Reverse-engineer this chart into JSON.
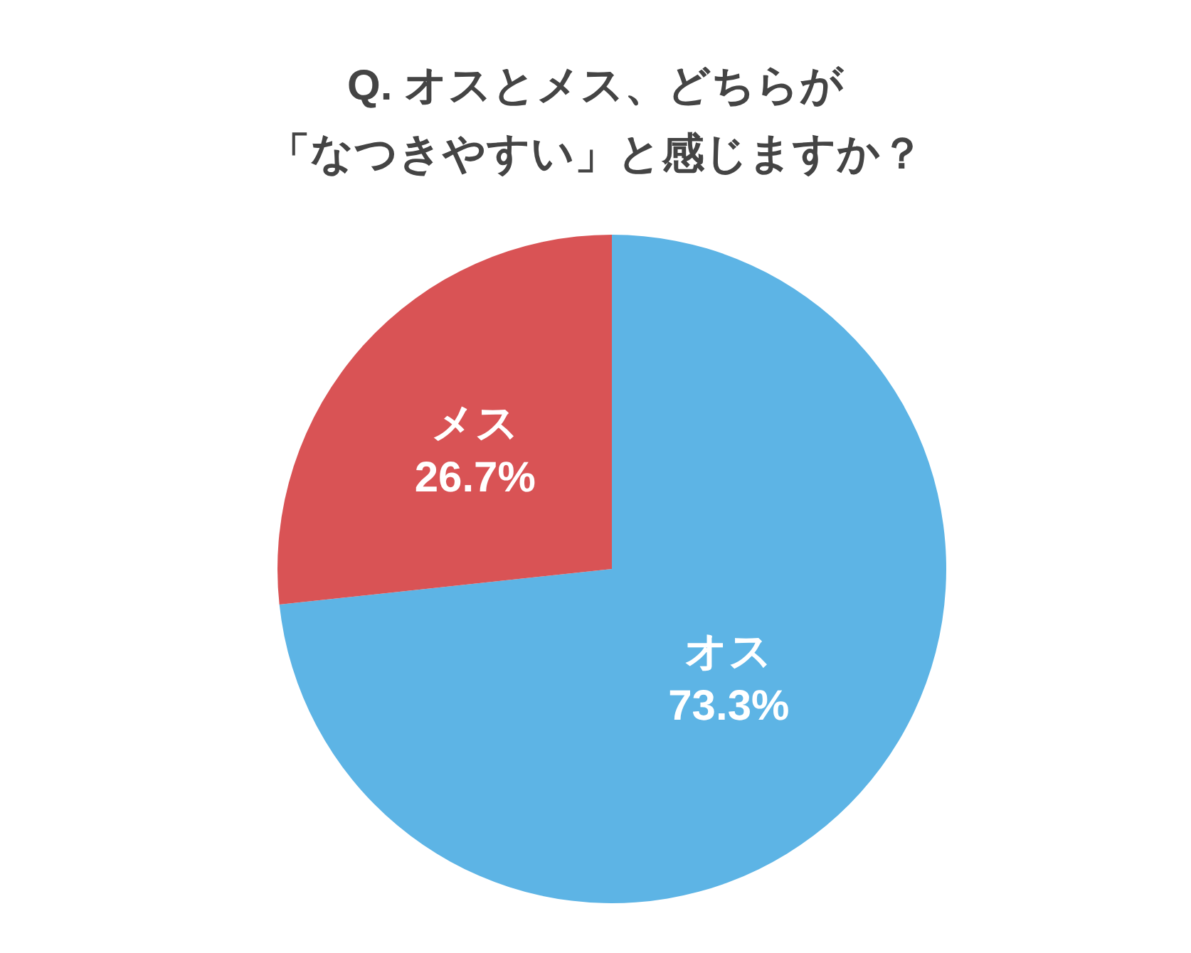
{
  "chart_data": {
    "type": "pie",
    "title": "Q. オスとメス、どちらが「なつきやすい」と感じますか？",
    "categories": [
      "オス",
      "メス"
    ],
    "values": [
      73.3,
      26.7
    ],
    "colors": [
      "#5db4e5",
      "#d95355"
    ],
    "value_labels": [
      "73.3%",
      "26.7%"
    ]
  }
}
